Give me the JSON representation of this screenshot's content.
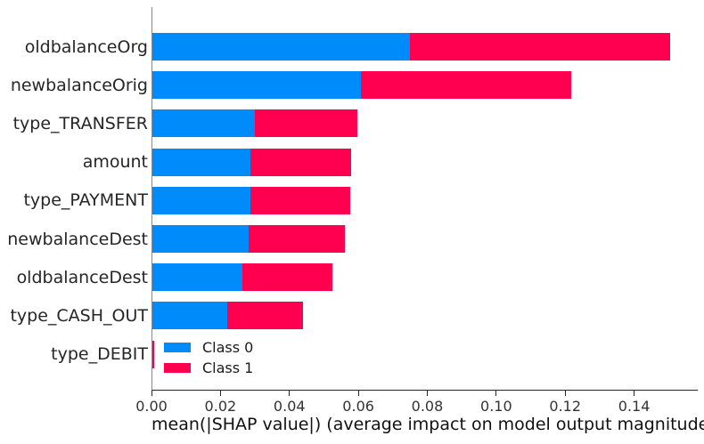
{
  "chart_data": {
    "type": "bar",
    "orientation": "horizontal",
    "stacked": true,
    "title": "",
    "xlabel": "mean(|SHAP value|) (average impact on model output magnitude)",
    "ylabel": "",
    "categories": [
      "oldbalanceOrg",
      "newbalanceOrig",
      "type_TRANSFER",
      "amount",
      "type_PAYMENT",
      "newbalanceDest",
      "oldbalanceDest",
      "type_CASH_OUT",
      "type_DEBIT"
    ],
    "series": [
      {
        "name": "Class 0",
        "color": "#008bfb",
        "values": [
          0.0746,
          0.0606,
          0.0297,
          0.0285,
          0.0284,
          0.028,
          0.026,
          0.0218,
          0.0001
        ]
      },
      {
        "name": "Class 1",
        "color": "#ff0051",
        "values": [
          0.0756,
          0.0608,
          0.0298,
          0.0291,
          0.0291,
          0.0279,
          0.0263,
          0.022,
          0.0005
        ]
      }
    ],
    "totals": [
      0.1502,
      0.1214,
      0.0595,
      0.0576,
      0.0575,
      0.0559,
      0.0523,
      0.0438,
      0.0006
    ],
    "xlim": [
      0,
      0.1582
    ],
    "xticks": [
      0,
      0.02,
      0.04,
      0.06,
      0.08,
      0.1,
      0.12,
      0.14
    ],
    "xtick_labels": [
      "0.00",
      "0.02",
      "0.04",
      "0.06",
      "0.08",
      "0.10",
      "0.12",
      "0.14"
    ],
    "grid": false,
    "legend_position": "lower left inside plot",
    "legend_entries": [
      "Class 0",
      "Class 1"
    ],
    "spine_colors": {
      "left": "#888888",
      "bottom": "#262626"
    }
  }
}
